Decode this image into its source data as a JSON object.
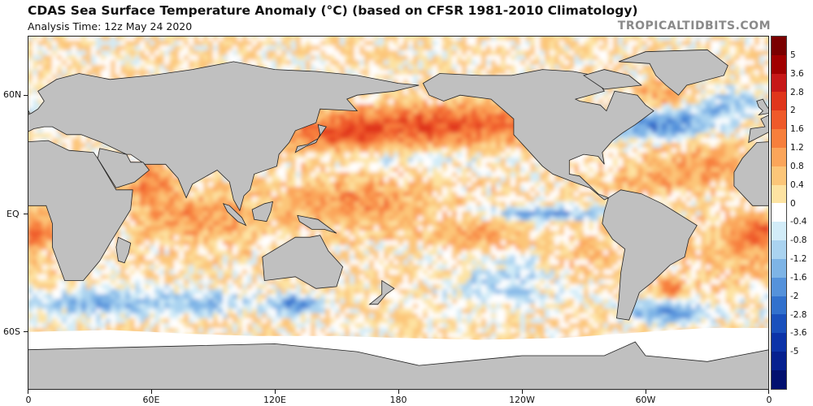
{
  "header": {
    "title": "CDAS Sea Surface Temperature Anomaly (°C) (based on CFSR 1981-2010 Climatology)",
    "subtitle": "Analysis Time: 12z May 24 2020",
    "brand": "TROPICALTIDBITS.COM"
  },
  "map": {
    "lat_labels": [
      "60N",
      "EQ",
      "60S"
    ],
    "lon_labels": [
      "0",
      "60E",
      "120E",
      "180",
      "120W",
      "60W",
      "0"
    ],
    "land_color": "#c0c0c0",
    "ice_color": "#ffffff"
  },
  "colorbar": {
    "labels": [
      "5",
      "3.6",
      "2.8",
      "2",
      "1.6",
      "1.2",
      "0.8",
      "0.4",
      "0",
      "-0.4",
      "-0.8",
      "-1.2",
      "-1.6",
      "-2",
      "-2.8",
      "-3.6",
      "-5"
    ],
    "colors": [
      "#7a0000",
      "#a10000",
      "#c71818",
      "#e0361c",
      "#ef5a2a",
      "#f77f3c",
      "#fba55a",
      "#fcc679",
      "#fde3a2",
      "#ffffff",
      "#d2ecf8",
      "#aad3f0",
      "#7eb4e6",
      "#5592db",
      "#3271cd",
      "#1a50bc",
      "#0c33a8",
      "#06208f",
      "#02106f"
    ]
  },
  "hotspots": [
    {
      "lon": 200,
      "lat": 45,
      "sx": 55,
      "sy": 10,
      "v": 1.7
    },
    {
      "lon": 150,
      "lat": 40,
      "sx": 25,
      "sy": 8,
      "v": 1.2
    },
    {
      "lon": 160,
      "lat": 5,
      "sx": 35,
      "sy": 12,
      "v": 1.0
    },
    {
      "lon": 250,
      "lat": 0,
      "sx": 30,
      "sy": 3,
      "v": -1.6
    },
    {
      "lon": 220,
      "lat": -10,
      "sx": 20,
      "sy": 8,
      "v": 0.7
    },
    {
      "lon": 230,
      "lat": -35,
      "sx": 25,
      "sy": 12,
      "v": -0.8
    },
    {
      "lon": 85,
      "lat": -2,
      "sx": 30,
      "sy": 12,
      "v": 0.9
    },
    {
      "lon": 60,
      "lat": 15,
      "sx": 12,
      "sy": 10,
      "v": 1.1
    },
    {
      "lon": 38,
      "lat": -45,
      "sx": 35,
      "sy": 7,
      "v": -1.3
    },
    {
      "lon": 130,
      "lat": -46,
      "sx": 12,
      "sy": 5,
      "v": -1.8
    },
    {
      "lon": 90,
      "lat": -45,
      "sx": 20,
      "sy": 6,
      "v": -0.9
    },
    {
      "lon": 305,
      "lat": 45,
      "sx": 25,
      "sy": 7,
      "v": -1.9
    },
    {
      "lon": 330,
      "lat": 25,
      "sx": 30,
      "sy": 10,
      "v": 0.8
    },
    {
      "lon": 310,
      "lat": -50,
      "sx": 20,
      "sy": 6,
      "v": -1.7
    },
    {
      "lon": 312,
      "lat": -38,
      "sx": 6,
      "sy": 4,
      "v": 1.5
    },
    {
      "lon": 0,
      "lat": -8,
      "sx": 15,
      "sy": 8,
      "v": 1.2
    },
    {
      "lon": 300,
      "lat": 15,
      "sx": 25,
      "sy": 5,
      "v": 0.6
    },
    {
      "lon": 340,
      "lat": 55,
      "sx": 20,
      "sy": 8,
      "v": -1.0
    },
    {
      "lon": 310,
      "lat": 60,
      "sx": 15,
      "sy": 6,
      "v": 0.9
    },
    {
      "lon": 192,
      "lat": 28,
      "sx": 40,
      "sy": 4,
      "v": -0.5
    },
    {
      "lon": 270,
      "lat": -20,
      "sx": 15,
      "sy": 10,
      "v": 0.4
    },
    {
      "lon": 345,
      "lat": -20,
      "sx": 25,
      "sy": 15,
      "v": 0.6
    }
  ]
}
